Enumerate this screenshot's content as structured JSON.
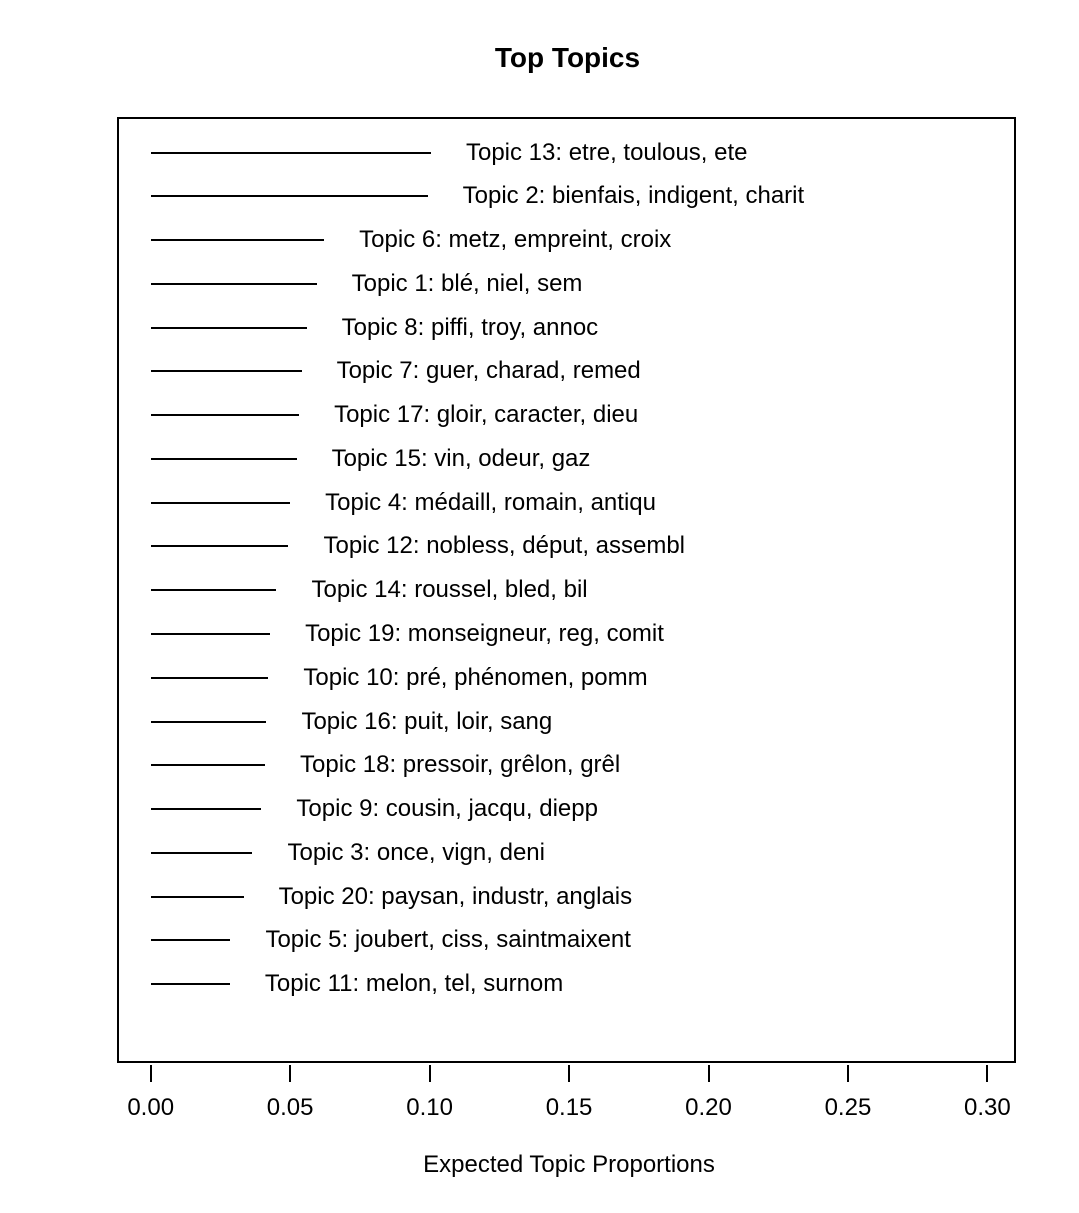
{
  "chart_data": {
    "type": "bar",
    "title": "Top Topics",
    "xlabel": "Expected Topic Proportions",
    "xlim": [
      0,
      0.311
    ],
    "grid": false,
    "legend": "none",
    "xticks": [
      0.0,
      0.05,
      0.1,
      0.15,
      0.2,
      0.25,
      0.3
    ],
    "xtick_labels": [
      "0.00",
      "0.05",
      "0.10",
      "0.15",
      "0.20",
      "0.25",
      "0.30"
    ],
    "topics": [
      {
        "label": "Topic 13: etre, toulous, ete",
        "value": 0.1005
      },
      {
        "label": "Topic 2: bienfais, indigent, charit",
        "value": 0.0993
      },
      {
        "label": "Topic 6: metz, empreint, croix",
        "value": 0.0622
      },
      {
        "label": "Topic 1: blé, niel, sem",
        "value": 0.0595
      },
      {
        "label": "Topic 8: piffi, troy, annoc",
        "value": 0.0559
      },
      {
        "label": "Topic 7: guer, charad, remed",
        "value": 0.0541
      },
      {
        "label": "Topic 17: gloir, caracter, dieu",
        "value": 0.0532
      },
      {
        "label": "Topic 15: vin, odeur, gaz",
        "value": 0.0523
      },
      {
        "label": "Topic 4: médaill, romain, antiqu",
        "value": 0.05
      },
      {
        "label": "Topic 12: nobless, déput, assembl",
        "value": 0.0494
      },
      {
        "label": "Topic 14: roussel, bled, bil",
        "value": 0.0451
      },
      {
        "label": "Topic 19: monseigneur, reg, comit",
        "value": 0.0428
      },
      {
        "label": "Topic 10: pré, phénomen, pomm",
        "value": 0.0422
      },
      {
        "label": "Topic 16: puit, loir, sang",
        "value": 0.0415
      },
      {
        "label": "Topic 18: pressoir, grêlon, grêl",
        "value": 0.041
      },
      {
        "label": "Topic 9: cousin, jacqu, diepp",
        "value": 0.0397
      },
      {
        "label": "Topic 3: once, vign, deni",
        "value": 0.0365
      },
      {
        "label": "Topic 20: paysan, industr, anglais",
        "value": 0.0333
      },
      {
        "label": "Topic 5: joubert, ciss, saintmaixent",
        "value": 0.0286
      },
      {
        "label": "Topic 11: melon, tel, surnom",
        "value": 0.0284
      }
    ]
  },
  "colors": {
    "background": "#ffffff",
    "line": "#000000",
    "text": "#000000",
    "box_border": "#000000"
  }
}
